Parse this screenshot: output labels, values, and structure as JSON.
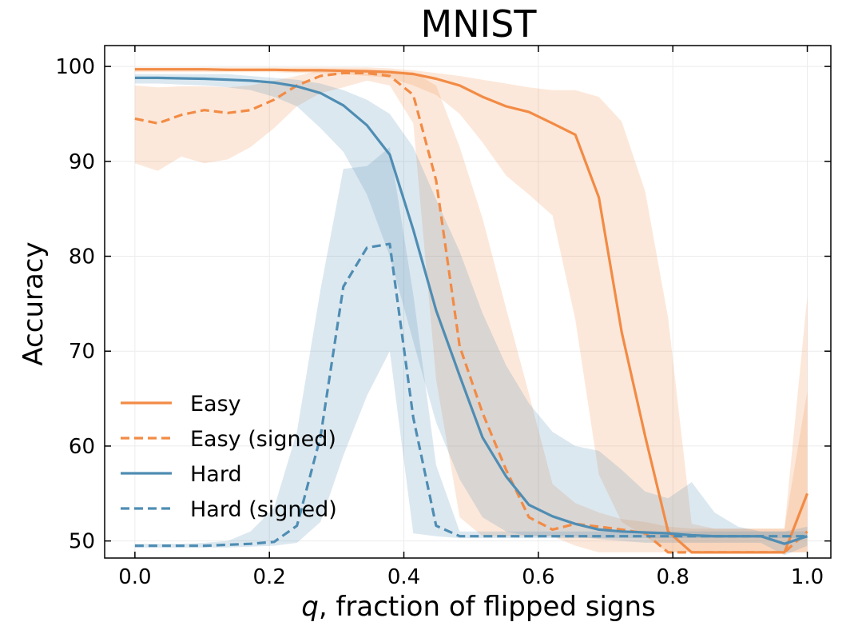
{
  "chart_data": {
    "type": "line",
    "title": "MNIST",
    "xlabel_var": "q",
    "xlabel_rest": ", fraction of flipped signs",
    "ylabel": "Accuracy",
    "xlim": [
      -0.045,
      1.035
    ],
    "ylim": [
      48.2,
      102.2
    ],
    "xticks": [
      0.0,
      0.2,
      0.4,
      0.6,
      0.8,
      1.0
    ],
    "xtick_labels": [
      "0.0",
      "0.2",
      "0.4",
      "0.6",
      "0.8",
      "1.0"
    ],
    "yticks": [
      50,
      60,
      70,
      80,
      90,
      100
    ],
    "ytick_labels": [
      "50",
      "60",
      "70",
      "80",
      "90",
      "100"
    ],
    "grid": true,
    "legend_position": "lower-left",
    "series": [
      {
        "name": "Easy",
        "color": "#f28b45",
        "dash": "solid",
        "x": [
          0.0,
          0.034,
          0.069,
          0.103,
          0.138,
          0.172,
          0.207,
          0.241,
          0.276,
          0.31,
          0.345,
          0.379,
          0.414,
          0.448,
          0.483,
          0.517,
          0.552,
          0.586,
          0.621,
          0.655,
          0.69,
          0.724,
          0.759,
          0.793,
          0.828,
          0.862,
          0.897,
          0.931,
          0.966,
          1.0
        ],
        "y": [
          99.7,
          99.7,
          99.7,
          99.7,
          99.65,
          99.65,
          99.65,
          99.6,
          99.6,
          99.55,
          99.5,
          99.4,
          99.2,
          98.7,
          98.0,
          96.8,
          95.8,
          95.2,
          94.0,
          92.8,
          86.2,
          72.0,
          61.0,
          51.0,
          48.8,
          48.8,
          48.8,
          48.8,
          48.8,
          55.0
        ],
        "band_upper": [
          99.9,
          99.9,
          99.9,
          99.9,
          99.9,
          99.9,
          99.9,
          99.9,
          99.9,
          99.9,
          99.9,
          99.8,
          99.6,
          99.3,
          99.0,
          98.6,
          98.2,
          97.8,
          97.5,
          97.5,
          96.8,
          94.2,
          86.8,
          73.5,
          51.8,
          51.3,
          51.3,
          51.3,
          51.3,
          75.8
        ],
        "band_lower": [
          99.4,
          99.4,
          99.4,
          99.4,
          99.4,
          99.4,
          99.4,
          99.3,
          99.3,
          99.2,
          99.0,
          98.8,
          98.0,
          97.0,
          95.0,
          92.0,
          88.5,
          86.5,
          84.3,
          73.3,
          57.0,
          52.0,
          50.5,
          48.8,
          48.8,
          48.8,
          48.8,
          48.8,
          48.8,
          48.8
        ]
      },
      {
        "name": "Easy (signed)",
        "color": "#f28b45",
        "dash": "dashed",
        "x": [
          0.0,
          0.034,
          0.069,
          0.103,
          0.138,
          0.172,
          0.207,
          0.241,
          0.276,
          0.31,
          0.345,
          0.379,
          0.414,
          0.448,
          0.483,
          0.517,
          0.552,
          0.586,
          0.621,
          0.655,
          0.69,
          0.724,
          0.759,
          0.793,
          0.828,
          0.862,
          0.897,
          0.931,
          0.966,
          1.0
        ],
        "y": [
          94.5,
          94.0,
          94.9,
          95.4,
          95.1,
          95.4,
          96.5,
          98.0,
          99.0,
          99.3,
          99.3,
          99.0,
          97.0,
          88.0,
          70.5,
          63.5,
          57.5,
          52.5,
          51.2,
          51.8,
          51.5,
          51.2,
          50.8,
          48.8,
          48.8,
          48.8,
          48.8,
          48.8,
          48.8,
          51.0
        ],
        "band_upper": [
          98.0,
          97.8,
          97.9,
          97.9,
          97.8,
          98.0,
          98.5,
          99.0,
          99.6,
          99.7,
          99.7,
          99.6,
          99.4,
          98.0,
          91.5,
          84.0,
          74.5,
          65.5,
          56.0,
          54.0,
          53.0,
          52.3,
          52.0,
          51.5,
          51.3,
          51.3,
          51.3,
          51.3,
          51.3,
          65.8
        ],
        "band_lower": [
          89.8,
          89.0,
          90.5,
          89.8,
          90.2,
          91.5,
          93.5,
          95.8,
          97.2,
          97.8,
          98.5,
          98.0,
          94.0,
          67.0,
          52.5,
          50.5,
          50.5,
          50.5,
          50.5,
          49.5,
          48.8,
          48.8,
          48.8,
          48.8,
          48.8,
          48.8,
          48.8,
          48.8,
          48.8,
          48.8
        ]
      },
      {
        "name": "Hard",
        "color": "#4f8db3",
        "dash": "solid",
        "x": [
          0.0,
          0.034,
          0.069,
          0.103,
          0.138,
          0.172,
          0.207,
          0.241,
          0.276,
          0.31,
          0.345,
          0.379,
          0.414,
          0.448,
          0.483,
          0.517,
          0.552,
          0.586,
          0.621,
          0.655,
          0.69,
          0.724,
          0.759,
          0.793,
          0.828,
          0.862,
          0.897,
          0.931,
          0.966,
          1.0
        ],
        "y": [
          98.8,
          98.8,
          98.75,
          98.7,
          98.6,
          98.5,
          98.3,
          97.9,
          97.2,
          95.9,
          93.8,
          90.7,
          82.8,
          74.3,
          67.4,
          60.9,
          56.8,
          53.8,
          52.6,
          51.8,
          51.2,
          51.0,
          50.9,
          50.8,
          50.6,
          50.5,
          50.5,
          50.5,
          49.7,
          50.5
        ],
        "band_upper": [
          99.2,
          99.2,
          99.2,
          99.2,
          99.2,
          99.0,
          98.8,
          98.6,
          98.2,
          97.5,
          96.5,
          95.0,
          91.5,
          86.0,
          80.5,
          74.0,
          68.5,
          64.5,
          61.5,
          60.0,
          59.5,
          57.5,
          55.2,
          54.5,
          56.2,
          53.0,
          51.5,
          51.0,
          51.0,
          51.5
        ],
        "band_lower": [
          98.2,
          98.2,
          98.1,
          98.0,
          97.8,
          97.5,
          96.8,
          95.8,
          93.5,
          91.0,
          86.5,
          80.0,
          71.0,
          62.5,
          56.5,
          52.5,
          51.0,
          50.5,
          50.5,
          50.5,
          50.2,
          50.0,
          49.8,
          49.8,
          49.8,
          49.8,
          49.8,
          49.8,
          48.5,
          49.5
        ]
      },
      {
        "name": "Hard (signed)",
        "color": "#4f8db3",
        "dash": "dashed",
        "x": [
          0.0,
          0.034,
          0.069,
          0.103,
          0.138,
          0.172,
          0.207,
          0.241,
          0.276,
          0.31,
          0.345,
          0.379,
          0.414,
          0.448,
          0.483,
          0.517,
          0.552,
          0.586,
          0.621,
          0.655,
          0.69,
          0.724,
          0.759,
          0.793,
          0.828,
          0.862,
          0.897,
          0.931,
          0.966,
          1.0
        ],
        "y": [
          49.5,
          49.5,
          49.5,
          49.5,
          49.6,
          49.7,
          49.9,
          51.6,
          61.0,
          76.8,
          80.9,
          81.3,
          63.0,
          51.6,
          50.5,
          50.5,
          50.5,
          50.5,
          50.5,
          50.5,
          50.5,
          50.5,
          50.5,
          50.5,
          50.5,
          50.5,
          50.5,
          50.5,
          50.5,
          50.5
        ],
        "band_upper": [
          49.7,
          49.7,
          49.7,
          49.8,
          50.0,
          51.0,
          53.5,
          61.5,
          76.5,
          89.2,
          89.5,
          91.5,
          76.0,
          58.0,
          51.0,
          51.0,
          51.0,
          51.0,
          51.0,
          51.0,
          51.0,
          51.0,
          51.0,
          51.0,
          51.0,
          51.0,
          51.0,
          51.0,
          51.0,
          51.0
        ],
        "band_lower": [
          49.3,
          49.3,
          49.3,
          49.3,
          49.3,
          49.4,
          49.5,
          49.8,
          52.0,
          59.0,
          65.3,
          70.0,
          50.8,
          50.5,
          50.3,
          50.3,
          50.3,
          50.3,
          50.3,
          50.3,
          50.3,
          50.3,
          50.3,
          50.3,
          50.3,
          50.3,
          50.3,
          50.3,
          50.3,
          50.3
        ]
      }
    ]
  }
}
